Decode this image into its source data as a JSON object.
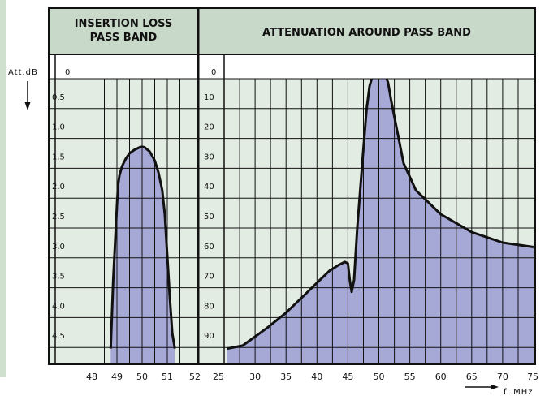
{
  "colors": {
    "side_panel": "#cfe0cf",
    "header_bg": "#c9d9c9",
    "grid_bg": "#e2ece2",
    "zero_row": "#ffffff",
    "fill": "#a6a8d6",
    "ink": "#111111"
  },
  "axis": {
    "ylabel": "Att.dB",
    "ylabel_arrow": "down-arrow",
    "xlabel": "f. MHz",
    "xlabel_arrow": "right-arrow"
  },
  "chart_data": [
    {
      "type": "area",
      "title": "INSERTION LOSS PASS BAND",
      "title_lines": [
        "INSERTION LOSS",
        "PASS BAND"
      ],
      "xlabel": "f. MHz",
      "ylabel": "Att.dB",
      "xlim": [
        48,
        52
      ],
      "ylim": [
        0,
        4.75
      ],
      "y_inverted": true,
      "grid": true,
      "x_ticks": [
        "48",
        "49",
        "50",
        "51",
        "52"
      ],
      "y_ticks": [
        "0",
        "0.5",
        "1.0",
        "1.5",
        "2.0",
        "2.5",
        "3.0",
        "3.5",
        "4.0",
        "4.5"
      ],
      "series": [
        {
          "x": [
            48.75,
            48.85,
            49.0,
            49.05,
            49.1,
            49.2,
            49.35,
            49.5,
            49.7,
            49.9,
            50.0,
            50.1,
            50.3,
            50.5,
            50.65,
            50.8,
            50.9,
            51.0,
            51.1,
            51.2,
            51.3
          ],
          "y": [
            4.75,
            3.6,
            2.35,
            2.0,
            1.85,
            1.7,
            1.57,
            1.48,
            1.42,
            1.38,
            1.37,
            1.38,
            1.45,
            1.6,
            1.8,
            2.1,
            2.5,
            3.2,
            3.9,
            4.5,
            4.75
          ]
        }
      ]
    },
    {
      "type": "area",
      "title": "ATTENUATION AROUND PASS BAND",
      "title_lines": [
        "ATTENUATION AROUND PASS BAND"
      ],
      "xlabel": "f. MHz",
      "ylabel": "Att.dB",
      "xlim": [
        25,
        75
      ],
      "ylim": [
        0,
        95
      ],
      "y_inverted": true,
      "grid": true,
      "x_ticks": [
        "25",
        "30",
        "35",
        "40",
        "45",
        "50",
        "55",
        "60",
        "65",
        "70",
        "75"
      ],
      "y_ticks": [
        "0",
        "10",
        "20",
        "30",
        "40",
        "50",
        "60",
        "70",
        "80",
        "90"
      ],
      "series": [
        {
          "x": [
            25.5,
            28,
            30,
            32,
            35,
            38,
            40,
            42,
            43.5,
            44.5,
            45,
            45.3,
            45.6,
            46,
            46.5,
            47.5,
            48,
            48.5,
            49,
            49.5,
            50,
            51,
            51.5,
            52,
            54,
            56,
            60,
            65,
            70,
            75
          ],
          "y": [
            95,
            94,
            91,
            88,
            83,
            77,
            73,
            69,
            67,
            66,
            66.5,
            72,
            76,
            72,
            55,
            28,
            15,
            7,
            3.5,
            2.7,
            2.5,
            3,
            6,
            12,
            33,
            42,
            50,
            56,
            59.5,
            61
          ]
        }
      ]
    }
  ]
}
